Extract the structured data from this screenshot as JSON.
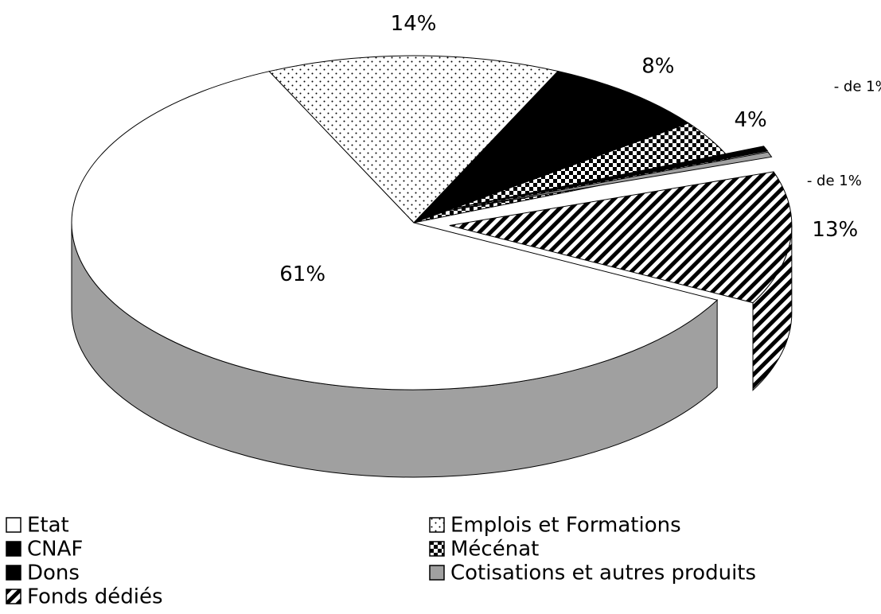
{
  "chart_data": {
    "type": "pie3d",
    "categories": [
      "Etat",
      "Emplois et Formations",
      "CNAF",
      "Mécénat",
      "Dons",
      "Cotisations et autres produits",
      "Fonds dédiés"
    ],
    "values": [
      61,
      14,
      8,
      4,
      0.5,
      0.5,
      13
    ],
    "value_labels": [
      "61%",
      "14%",
      "8%",
      "4%",
      "- de 1%",
      "- de 1%",
      "13%"
    ],
    "colors": [
      "#ffffff",
      "#ffffff",
      "#000000",
      "#000000",
      "#000000",
      "#a0a0a0",
      "#000000"
    ],
    "patterns": [
      null,
      "dots",
      null,
      "checker",
      null,
      null,
      "hatch"
    ],
    "explode": [
      false,
      false,
      false,
      false,
      true,
      true,
      true
    ],
    "legend": "bottom"
  }
}
